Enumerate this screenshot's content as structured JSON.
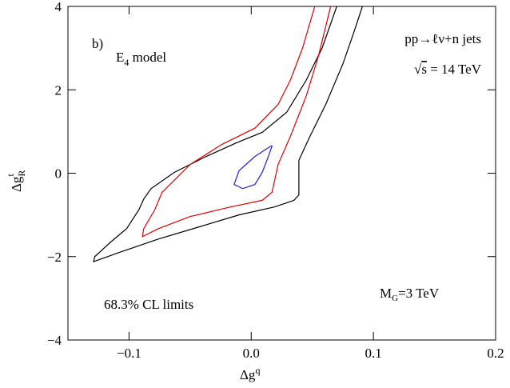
{
  "chart_data": {
    "type": "contour",
    "x_label": [
      "Δg",
      "q"
    ],
    "y_label": [
      "Δg",
      "R",
      "t"
    ],
    "annotations": {
      "panel": "b)",
      "model": [
        "E",
        "4",
        " model"
      ],
      "process": "pp→ℓν+n jets",
      "energy": [
        "√",
        "s",
        " = 14 TeV"
      ],
      "limits": "68.3% CL limits",
      "mass": [
        "M",
        "G",
        "=3 TeV"
      ]
    },
    "xlim": [
      -0.15,
      0.2
    ],
    "ylim": [
      -4,
      4
    ],
    "xticks": [
      {
        "value": -0.1,
        "label": "−0.1"
      },
      {
        "value": 0,
        "label": "0.0"
      },
      {
        "value": 0.1,
        "label": "0.1"
      },
      {
        "value": 0.2,
        "label": "0.2"
      }
    ],
    "yticks": [
      {
        "value": -4,
        "label": "−4"
      },
      {
        "value": -2,
        "label": "−2"
      },
      0,
      2,
      4
    ],
    "series": [
      {
        "color": "#000000",
        "x": [
          0.07,
          0.058,
          0.045,
          0.029,
          0.009,
          -0.012,
          -0.037,
          -0.063,
          -0.082,
          -0.088,
          -0.092,
          -0.102,
          -0.115,
          -0.128,
          -0.129,
          -0.108,
          -0.076,
          -0.043,
          -0.01,
          0.019,
          0.035,
          0.039,
          0.039,
          0.048,
          0.061,
          0.075,
          0.084,
          0.091
        ],
        "y": [
          4.0,
          3.0,
          2.23,
          1.46,
          0.98,
          0.73,
          0.4,
          0.02,
          -0.37,
          -0.62,
          -0.88,
          -1.33,
          -1.65,
          -2.0,
          -2.12,
          -1.9,
          -1.58,
          -1.29,
          -1.0,
          -0.81,
          -0.65,
          -0.52,
          0.31,
          0.88,
          1.65,
          2.62,
          3.38,
          4.0
        ]
      },
      {
        "color": "#e00000",
        "x": [
          0.052,
          0.042,
          0.032,
          0.022,
          0.003,
          -0.024,
          -0.05,
          -0.073,
          -0.079,
          -0.088,
          -0.089,
          -0.076,
          -0.05,
          -0.017,
          0.009,
          0.017,
          0.022,
          0.032,
          0.045,
          0.055,
          0.065
        ],
        "y": [
          4.0,
          3.0,
          2.23,
          1.65,
          1.08,
          0.69,
          0.21,
          -0.46,
          -0.88,
          -1.33,
          -1.52,
          -1.33,
          -1.04,
          -0.81,
          -0.65,
          -0.46,
          0.21,
          0.88,
          1.85,
          2.81,
          4.0
        ]
      },
      {
        "color": "#2020e0",
        "x": [
          0.016,
          0.003,
          -0.01,
          -0.014,
          -0.007,
          0.003,
          0.009,
          0.014,
          0.017,
          0.016
        ],
        "y": [
          0.65,
          0.4,
          0.06,
          -0.27,
          -0.37,
          -0.27,
          0.02,
          0.4,
          0.65,
          0.65
        ]
      }
    ]
  }
}
